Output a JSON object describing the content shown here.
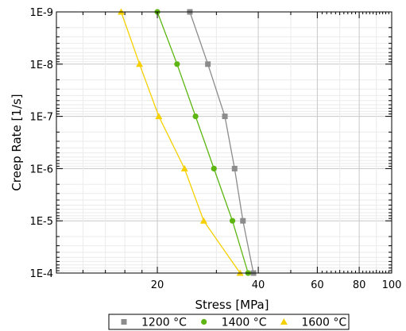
{
  "chart_data": {
    "type": "scatter",
    "xlabel": "Stress [MPa]",
    "ylabel": "Creep Rate [1/s]",
    "xscale": "log",
    "yscale": "log",
    "y_inverted": true,
    "xlim": [
      10,
      100
    ],
    "ylim": [
      1e-09,
      0.0001
    ],
    "x_tick_labels": [
      {
        "value": 20,
        "label": "20"
      },
      {
        "value": 40,
        "label": "40"
      },
      {
        "value": 60,
        "label": "60"
      },
      {
        "value": 80,
        "label": "80"
      },
      {
        "value": 100,
        "label": "100"
      }
    ],
    "y_tick_labels": [
      {
        "value": 1e-09,
        "label": "1E-9"
      },
      {
        "value": 1e-08,
        "label": "1E-8"
      },
      {
        "value": 1e-07,
        "label": "1E-7"
      },
      {
        "value": 1e-06,
        "label": "1E-6"
      },
      {
        "value": 1e-05,
        "label": "1E-5"
      },
      {
        "value": 0.0001,
        "label": "1E-4"
      }
    ],
    "grid": true,
    "legend_position": "bottom",
    "series": [
      {
        "name": "1200 °C",
        "color": "#8c8c8c",
        "marker": "square",
        "points": [
          {
            "x": 25.0,
            "y": 1e-09
          },
          {
            "x": 28.3,
            "y": 1e-08
          },
          {
            "x": 31.8,
            "y": 1e-07
          },
          {
            "x": 34.0,
            "y": 1e-06
          },
          {
            "x": 36.0,
            "y": 1e-05
          },
          {
            "x": 38.7,
            "y": 0.0001
          }
        ]
      },
      {
        "name": "1400 °C",
        "color": "#5cb510",
        "marker": "circle",
        "points": [
          {
            "x": 20.0,
            "y": 1e-09
          },
          {
            "x": 22.9,
            "y": 1e-08
          },
          {
            "x": 26.0,
            "y": 1e-07
          },
          {
            "x": 29.5,
            "y": 1e-06
          },
          {
            "x": 33.5,
            "y": 1e-05
          },
          {
            "x": 37.3,
            "y": 0.0001
          }
        ]
      },
      {
        "name": "1600 °C",
        "color": "#f5d000",
        "marker": "triangle",
        "points": [
          {
            "x": 15.6,
            "y": 1e-09
          },
          {
            "x": 17.7,
            "y": 1e-08
          },
          {
            "x": 20.2,
            "y": 1e-07
          },
          {
            "x": 24.1,
            "y": 1e-06
          },
          {
            "x": 27.5,
            "y": 1e-05
          },
          {
            "x": 35.3,
            "y": 0.0001
          }
        ]
      }
    ]
  }
}
